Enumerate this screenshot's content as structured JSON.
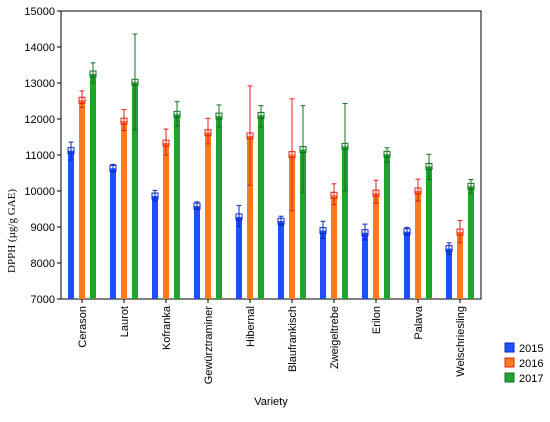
{
  "chart_data": {
    "type": "bar",
    "title": "",
    "xlabel": "Variety",
    "ylabel": "DPPH (µg/g GAE)",
    "ylim": [
      7000,
      15000
    ],
    "yticks": [
      7000,
      8000,
      9000,
      10000,
      11000,
      12000,
      13000,
      14000,
      15000
    ],
    "grid": false,
    "legend_position": "bottom-right",
    "categories": [
      "Cerason",
      "Laurot",
      "Kofranka",
      "Gewürztraminer",
      "Hibernal",
      "Blaufrankisch",
      "Zweigeltrebe",
      "Erilon",
      "Palava",
      "Welschriesling"
    ],
    "series": [
      {
        "name": "2015",
        "color": "#1f4fff",
        "edge": "#0a2ab8",
        "values": [
          11120,
          10630,
          9860,
          9580,
          9280,
          9160,
          8900,
          8840,
          8870,
          8400
        ],
        "err_low": [
          10860,
          10530,
          9720,
          9480,
          9020,
          9040,
          8680,
          8640,
          8770,
          8240
        ],
        "err_high": [
          11360,
          10740,
          10020,
          9700,
          9600,
          9300,
          9160,
          9080,
          8990,
          8560
        ]
      },
      {
        "name": "2016",
        "color": "#ff7a1a",
        "edge": "#e02020",
        "values": [
          12520,
          11940,
          11330,
          11620,
          11530,
          11010,
          9880,
          9940,
          10000,
          8860
        ],
        "err_low": [
          12320,
          11680,
          11000,
          11310,
          10160,
          9450,
          9620,
          9660,
          9720,
          8560
        ],
        "err_high": [
          12780,
          12260,
          11720,
          12020,
          12920,
          12560,
          10200,
          10300,
          10330,
          9180
        ]
      },
      {
        "name": "2017",
        "color": "#21a330",
        "edge": "#157020",
        "values": [
          13250,
          13020,
          12130,
          12080,
          12100,
          11150,
          11240,
          11020,
          10680,
          10130
        ],
        "err_low": [
          13000,
          11700,
          11800,
          11780,
          11780,
          9970,
          10000,
          10800,
          10320,
          9940
        ],
        "err_high": [
          13560,
          14360,
          12480,
          12390,
          12370,
          12370,
          12430,
          11200,
          11020,
          10320
        ]
      }
    ]
  }
}
